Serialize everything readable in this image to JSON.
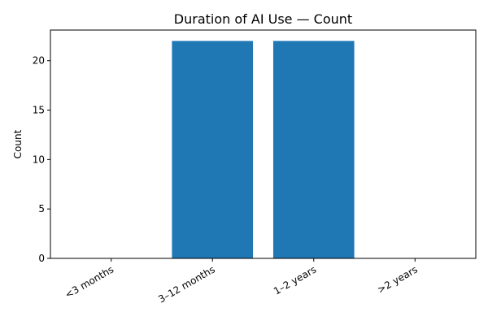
{
  "chart_data": {
    "type": "bar",
    "title": "Duration of AI Use — Count",
    "xlabel": "",
    "ylabel": "Count",
    "categories": [
      "<3 months",
      "3–12 months",
      "1–2 years",
      ">2 years"
    ],
    "values": [
      0,
      22,
      22,
      0
    ],
    "ylim": [
      0,
      23.1
    ],
    "yticks": [
      0,
      5,
      10,
      15,
      20
    ],
    "bar_color": "#1f77b4",
    "grid": false,
    "legend": "none"
  }
}
